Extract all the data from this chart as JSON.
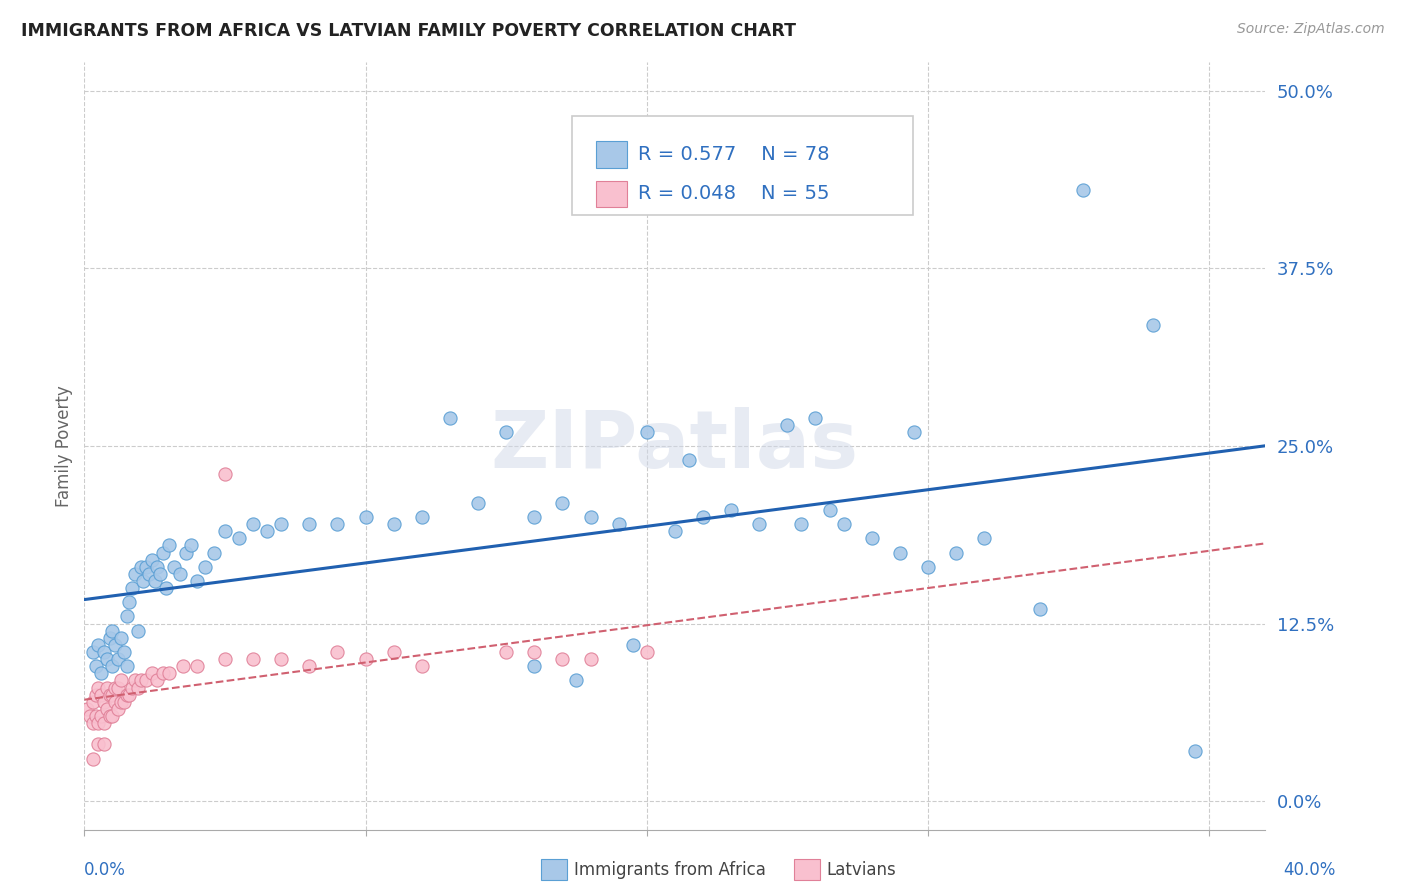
{
  "title": "IMMIGRANTS FROM AFRICA VS LATVIAN FAMILY POVERTY CORRELATION CHART",
  "source": "Source: ZipAtlas.com",
  "ylabel": "Family Poverty",
  "ytick_labels": [
    "0.0%",
    "12.5%",
    "25.0%",
    "37.5%",
    "50.0%"
  ],
  "ytick_values": [
    0.0,
    0.125,
    0.25,
    0.375,
    0.5
  ],
  "xlim": [
    0.0,
    0.42
  ],
  "ylim": [
    -0.02,
    0.52
  ],
  "ylim_data": [
    0.0,
    0.5
  ],
  "legend_label1": "Immigrants from Africa",
  "legend_label2": "Latvians",
  "r1": "0.577",
  "n1": "78",
  "r2": "0.048",
  "n2": "55",
  "color_blue_fill": "#a8c8e8",
  "color_blue_edge": "#5a9fd4",
  "color_pink_fill": "#f9c0cf",
  "color_pink_edge": "#e08098",
  "color_blue_line": "#2060b0",
  "color_pink_line": "#d06070",
  "color_blue_text": "#3070c0",
  "watermark": "ZIPatlas",
  "blue_scatter_x": [
    0.003,
    0.004,
    0.005,
    0.006,
    0.007,
    0.008,
    0.009,
    0.01,
    0.01,
    0.011,
    0.012,
    0.013,
    0.014,
    0.015,
    0.015,
    0.016,
    0.017,
    0.018,
    0.019,
    0.02,
    0.021,
    0.022,
    0.023,
    0.024,
    0.025,
    0.026,
    0.027,
    0.028,
    0.029,
    0.03,
    0.032,
    0.034,
    0.036,
    0.038,
    0.04,
    0.043,
    0.046,
    0.05,
    0.055,
    0.06,
    0.065,
    0.07,
    0.08,
    0.09,
    0.1,
    0.11,
    0.12,
    0.13,
    0.14,
    0.15,
    0.16,
    0.17,
    0.18,
    0.19,
    0.2,
    0.21,
    0.22,
    0.23,
    0.24,
    0.25,
    0.26,
    0.27,
    0.28,
    0.29,
    0.3,
    0.31,
    0.32,
    0.16,
    0.175,
    0.195,
    0.215,
    0.255,
    0.265,
    0.295,
    0.34,
    0.355,
    0.38,
    0.395
  ],
  "blue_scatter_y": [
    0.105,
    0.095,
    0.11,
    0.09,
    0.105,
    0.1,
    0.115,
    0.095,
    0.12,
    0.11,
    0.1,
    0.115,
    0.105,
    0.095,
    0.13,
    0.14,
    0.15,
    0.16,
    0.12,
    0.165,
    0.155,
    0.165,
    0.16,
    0.17,
    0.155,
    0.165,
    0.16,
    0.175,
    0.15,
    0.18,
    0.165,
    0.16,
    0.175,
    0.18,
    0.155,
    0.165,
    0.175,
    0.19,
    0.185,
    0.195,
    0.19,
    0.195,
    0.195,
    0.195,
    0.2,
    0.195,
    0.2,
    0.27,
    0.21,
    0.26,
    0.2,
    0.21,
    0.2,
    0.195,
    0.26,
    0.19,
    0.2,
    0.205,
    0.195,
    0.265,
    0.27,
    0.195,
    0.185,
    0.175,
    0.165,
    0.175,
    0.185,
    0.095,
    0.085,
    0.11,
    0.24,
    0.195,
    0.205,
    0.26,
    0.135,
    0.43,
    0.335,
    0.035
  ],
  "pink_scatter_x": [
    0.001,
    0.002,
    0.003,
    0.003,
    0.004,
    0.004,
    0.005,
    0.005,
    0.006,
    0.006,
    0.007,
    0.007,
    0.008,
    0.008,
    0.009,
    0.009,
    0.01,
    0.01,
    0.011,
    0.011,
    0.012,
    0.012,
    0.013,
    0.013,
    0.014,
    0.015,
    0.016,
    0.017,
    0.018,
    0.019,
    0.02,
    0.022,
    0.024,
    0.026,
    0.028,
    0.03,
    0.035,
    0.04,
    0.05,
    0.06,
    0.07,
    0.08,
    0.09,
    0.1,
    0.11,
    0.12,
    0.15,
    0.16,
    0.17,
    0.18,
    0.2,
    0.003,
    0.005,
    0.007,
    0.05
  ],
  "pink_scatter_y": [
    0.065,
    0.06,
    0.055,
    0.07,
    0.06,
    0.075,
    0.055,
    0.08,
    0.06,
    0.075,
    0.055,
    0.07,
    0.065,
    0.08,
    0.06,
    0.075,
    0.06,
    0.075,
    0.07,
    0.08,
    0.065,
    0.08,
    0.07,
    0.085,
    0.07,
    0.075,
    0.075,
    0.08,
    0.085,
    0.08,
    0.085,
    0.085,
    0.09,
    0.085,
    0.09,
    0.09,
    0.095,
    0.095,
    0.1,
    0.1,
    0.1,
    0.095,
    0.105,
    0.1,
    0.105,
    0.095,
    0.105,
    0.105,
    0.1,
    0.1,
    0.105,
    0.03,
    0.04,
    0.04,
    0.23
  ]
}
